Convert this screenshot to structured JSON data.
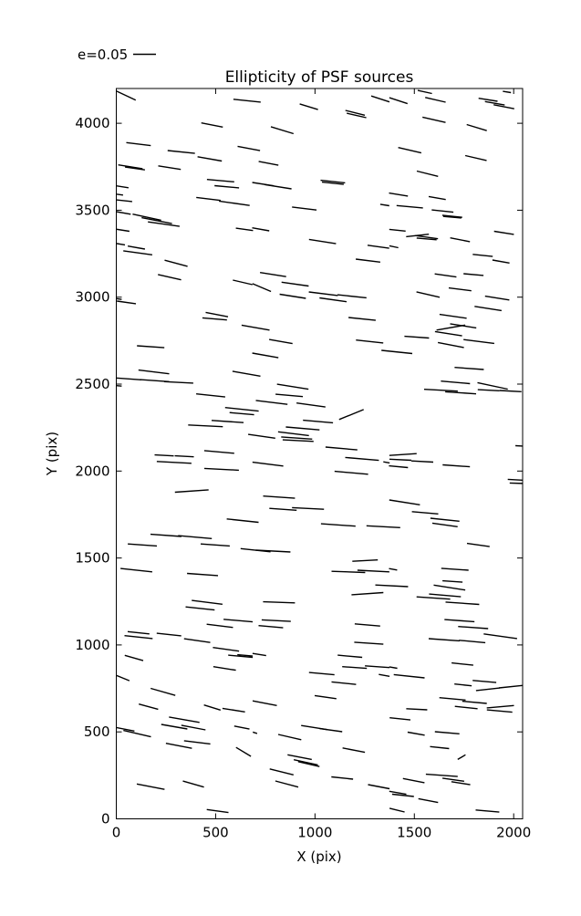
{
  "title": "Ellipticity of PSF sources",
  "legend": {
    "label": "e=0.05",
    "reference_e": 0.05
  },
  "axes": {
    "xlabel": "X (pix)",
    "ylabel": "Y (pix)",
    "xticks": [
      0,
      500,
      1000,
      1500,
      2000
    ],
    "yticks": [
      0,
      500,
      1000,
      1500,
      2000,
      2500,
      3000,
      3500,
      4000
    ],
    "xlim": [
      0,
      2045
    ],
    "ylim": [
      0,
      4200
    ],
    "grid": false,
    "tick_direction": "in",
    "spine_color": "#000000"
  },
  "chart_data": {
    "type": "scatter",
    "title": "Ellipticity of PSF sources",
    "xlabel": "X (pix)",
    "ylabel": "Y (pix)",
    "xlim": [
      0,
      2045
    ],
    "ylim": [
      0,
      4200
    ],
    "legend": "e=0.05 reference whisker; each point drawn as a line segment of length proportional to ellipticity e (0.05 = 25 px), tilted by its position angle",
    "segment_fields": [
      "x_pix",
      "y_pix",
      "angle_deg",
      "e"
    ],
    "segments": [
      [
        48,
        4160,
        -25,
        0.048
      ],
      [
        658,
        4130,
        -6,
        0.06
      ],
      [
        482,
        3990,
        -11,
        0.048
      ],
      [
        112,
        3880,
        -7,
        0.054
      ],
      [
        667,
        3855,
        -11,
        0.05
      ],
      [
        327,
        3835,
        -6,
        0.06
      ],
      [
        470,
        3795,
        -10,
        0.054
      ],
      [
        71,
        3750,
        -9,
        0.054
      ],
      [
        94,
        3740,
        -8,
        0.044
      ],
      [
        268,
        3745,
        -9,
        0.05
      ],
      [
        525,
        3670,
        -5,
        0.06
      ],
      [
        556,
        3635,
        -5,
        0.054
      ],
      [
        30,
        3635,
        -9,
        0.028
      ],
      [
        16,
        3590,
        -8,
        0.016
      ],
      [
        39,
        3555,
        -6,
        0.036
      ],
      [
        464,
        3565,
        -7,
        0.054
      ],
      [
        594,
        3540,
        -8,
        0.068
      ],
      [
        34,
        3485,
        -10,
        0.034
      ],
      [
        154,
        3460,
        -12,
        0.064
      ],
      [
        204,
        3440,
        -11,
        0.068
      ],
      [
        239,
        3420,
        -8,
        0.07
      ],
      [
        645,
        3390,
        -8,
        0.038
      ],
      [
        32,
        3385,
        -9,
        0.03
      ],
      [
        21,
        3305,
        -9,
        0.02
      ],
      [
        101,
        3285,
        -10,
        0.038
      ],
      [
        108,
        3255,
        -8,
        0.064
      ],
      [
        301,
        3195,
        -15,
        0.052
      ],
      [
        969,
        4095,
        -17,
        0.042
      ],
      [
        1329,
        4140,
        -18,
        0.042
      ],
      [
        1202,
        4060,
        -14,
        0.044
      ],
      [
        1209,
        4045,
        -13,
        0.044
      ],
      [
        835,
        3960,
        -17,
        0.052
      ],
      [
        766,
        3770,
        -11,
        0.044
      ],
      [
        739,
        3650,
        -9,
        0.048
      ],
      [
        814,
        3635,
        -9,
        0.06
      ],
      [
        1090,
        3665,
        -6,
        0.054
      ],
      [
        1090,
        3655,
        -6,
        0.048
      ],
      [
        946,
        3510,
        -7,
        0.054
      ],
      [
        1351,
        3530,
        -9,
        0.02
      ],
      [
        727,
        3390,
        -10,
        0.038
      ],
      [
        1038,
        3320,
        -9,
        0.06
      ],
      [
        1319,
        3290,
        -8,
        0.048
      ],
      [
        1267,
        3210,
        -7,
        0.054
      ],
      [
        1420,
        4130,
        -18,
        0.042
      ],
      [
        1553,
        4180,
        -12,
        0.032
      ],
      [
        1606,
        4135,
        -13,
        0.046
      ],
      [
        1871,
        4135,
        -9,
        0.042
      ],
      [
        1905,
        4115,
        -10,
        0.044
      ],
      [
        1951,
        4095,
        -11,
        0.046
      ],
      [
        1966,
        4180,
        -9,
        0.018
      ],
      [
        1599,
        4020,
        -13,
        0.052
      ],
      [
        1814,
        3975,
        -17,
        0.046
      ],
      [
        1477,
        3845,
        -13,
        0.052
      ],
      [
        1810,
        3800,
        -13,
        0.048
      ],
      [
        1566,
        3710,
        -14,
        0.048
      ],
      [
        1420,
        3590,
        -9,
        0.042
      ],
      [
        1615,
        3570,
        -10,
        0.038
      ],
      [
        1477,
        3520,
        -5,
        0.058
      ],
      [
        1642,
        3495,
        -6,
        0.048
      ],
      [
        1691,
        3465,
        -6,
        0.044
      ],
      [
        1691,
        3460,
        -5,
        0.04
      ],
      [
        1415,
        3385,
        -6,
        0.036
      ],
      [
        1516,
        3355,
        6,
        0.05
      ],
      [
        1562,
        3345,
        -8,
        0.05
      ],
      [
        1562,
        3335,
        -5,
        0.044
      ],
      [
        1951,
        3370,
        -9,
        0.044
      ],
      [
        1730,
        3330,
        -11,
        0.044
      ],
      [
        1397,
        3290,
        -12,
        0.02
      ],
      [
        1844,
        3240,
        -6,
        0.044
      ],
      [
        1936,
        3205,
        -10,
        0.038
      ],
      [
        268,
        3115,
        -13,
        0.052
      ],
      [
        636,
        3085,
        -13,
        0.044
      ],
      [
        11,
        2990,
        -9,
        0.014
      ],
      [
        51,
        2970,
        -8,
        0.042
      ],
      [
        506,
        2900,
        -11,
        0.05
      ],
      [
        495,
        2875,
        -5,
        0.054
      ],
      [
        701,
        2825,
        -10,
        0.062
      ],
      [
        173,
        2715,
        -4,
        0.06
      ],
      [
        189,
        2570,
        -7,
        0.068
      ],
      [
        655,
        2560,
        -10,
        0.062
      ],
      [
        62,
        2530,
        -4,
        0.056
      ],
      [
        193,
        2520,
        -4,
        0.064
      ],
      [
        314,
        2510,
        -3,
        0.064
      ],
      [
        11,
        2490,
        -5,
        0.014
      ],
      [
        475,
        2435,
        -6,
        0.064
      ],
      [
        632,
        2355,
        -6,
        0.074
      ],
      [
        632,
        2330,
        -5,
        0.054
      ],
      [
        560,
        2285,
        -4,
        0.07
      ],
      [
        449,
        2260,
        -3,
        0.076
      ],
      [
        518,
        2110,
        -5,
        0.066
      ],
      [
        789,
        3130,
        -9,
        0.058
      ],
      [
        900,
        3075,
        -8,
        0.06
      ],
      [
        732,
        3055,
        -23,
        0.044
      ],
      [
        888,
        3005,
        -9,
        0.058
      ],
      [
        1042,
        3020,
        -7,
        0.064
      ],
      [
        1091,
        2985,
        -8,
        0.06
      ],
      [
        1186,
        3005,
        -6,
        0.064
      ],
      [
        1237,
        2875,
        -6,
        0.06
      ],
      [
        828,
        2745,
        -10,
        0.052
      ],
      [
        1275,
        2745,
        -6,
        0.06
      ],
      [
        750,
        2665,
        -10,
        0.058
      ],
      [
        1412,
        2685,
        -6,
        0.068
      ],
      [
        888,
        2485,
        -9,
        0.07
      ],
      [
        870,
        2435,
        -5,
        0.06
      ],
      [
        782,
        2395,
        -7,
        0.07
      ],
      [
        980,
        2380,
        -8,
        0.064
      ],
      [
        1183,
        2325,
        22,
        0.058
      ],
      [
        1015,
        2285,
        -5,
        0.066
      ],
      [
        938,
        2245,
        -5,
        0.074
      ],
      [
        892,
        2215,
        -7,
        0.068
      ],
      [
        908,
        2190,
        -4,
        0.068
      ],
      [
        732,
        2200,
        -8,
        0.06
      ],
      [
        915,
        2175,
        -3,
        0.068
      ],
      [
        1133,
        2130,
        -5,
        0.07
      ],
      [
        1657,
        3125,
        -8,
        0.048
      ],
      [
        1798,
        3130,
        -5,
        0.044
      ],
      [
        1730,
        3045,
        -7,
        0.05
      ],
      [
        1569,
        3015,
        -13,
        0.052
      ],
      [
        1917,
        2995,
        -9,
        0.054
      ],
      [
        1871,
        2935,
        -9,
        0.06
      ],
      [
        1695,
        2890,
        -8,
        0.06
      ],
      [
        1746,
        2835,
        -9,
        0.058
      ],
      [
        1684,
        2825,
        10,
        0.064
      ],
      [
        1672,
        2790,
        -9,
        0.06
      ],
      [
        1512,
        2770,
        -4,
        0.054
      ],
      [
        1825,
        2745,
        -7,
        0.068
      ],
      [
        1684,
        2725,
        -11,
        0.058
      ],
      [
        1776,
        2590,
        -4,
        0.064
      ],
      [
        1707,
        2510,
        -5,
        0.064
      ],
      [
        1894,
        2490,
        -12,
        0.068
      ],
      [
        1634,
        2465,
        -3,
        0.074
      ],
      [
        1733,
        2450,
        -4,
        0.068
      ],
      [
        1874,
        2465,
        -3,
        0.048
      ],
      [
        1984,
        2460,
        -3,
        0.048
      ],
      [
        2027,
        2145,
        -3,
        0.016
      ],
      [
        241,
        2090,
        -3,
        0.042
      ],
      [
        342,
        2085,
        -3,
        0.042
      ],
      [
        291,
        2050,
        -3,
        0.076
      ],
      [
        530,
        2010,
        -3,
        0.076
      ],
      [
        380,
        1885,
        4,
        0.074
      ],
      [
        636,
        1715,
        -6,
        0.07
      ],
      [
        250,
        1630,
        -4,
        0.068
      ],
      [
        396,
        1620,
        -5,
        0.074
      ],
      [
        131,
        1575,
        -4,
        0.064
      ],
      [
        498,
        1575,
        -4,
        0.064
      ],
      [
        701,
        1545,
        -6,
        0.066
      ],
      [
        101,
        1430,
        -6,
        0.07
      ],
      [
        434,
        1405,
        -4,
        0.068
      ],
      [
        457,
        1245,
        -7,
        0.068
      ],
      [
        422,
        1210,
        -6,
        0.064
      ],
      [
        613,
        1140,
        -5,
        0.064
      ],
      [
        521,
        1110,
        -7,
        0.058
      ],
      [
        112,
        1070,
        -6,
        0.048
      ],
      [
        265,
        1060,
        -6,
        0.054
      ],
      [
        763,
        2040,
        -7,
        0.068
      ],
      [
        1237,
        2070,
        -5,
        0.074
      ],
      [
        1360,
        2050,
        -10,
        0.014
      ],
      [
        1183,
        1990,
        -5,
        0.074
      ],
      [
        819,
        1850,
        -4,
        0.07
      ],
      [
        839,
        1780,
        -4,
        0.06
      ],
      [
        965,
        1785,
        -3,
        0.07
      ],
      [
        1117,
        1690,
        -4,
        0.076
      ],
      [
        1344,
        1680,
        -3,
        0.074
      ],
      [
        789,
        1540,
        -3,
        0.076
      ],
      [
        1252,
        1485,
        3,
        0.056
      ],
      [
        1168,
        1420,
        -2,
        0.074
      ],
      [
        1294,
        1425,
        -3,
        0.07
      ],
      [
        1386,
        1340,
        -3,
        0.072
      ],
      [
        1264,
        1295,
        4,
        0.07
      ],
      [
        819,
        1245,
        -2,
        0.07
      ],
      [
        805,
        1140,
        -3,
        0.064
      ],
      [
        778,
        1105,
        -5,
        0.054
      ],
      [
        1264,
        1115,
        -5,
        0.056
      ],
      [
        1443,
        2095,
        4,
        0.06
      ],
      [
        1430,
        2065,
        -3,
        0.048
      ],
      [
        1540,
        2055,
        -3,
        0.048
      ],
      [
        1420,
        2025,
        -5,
        0.042
      ],
      [
        1711,
        2030,
        -4,
        0.06
      ],
      [
        2009,
        1950,
        -3,
        0.034
      ],
      [
        2014,
        1930,
        -2,
        0.03
      ],
      [
        1451,
        1820,
        -9,
        0.068
      ],
      [
        1554,
        1760,
        -5,
        0.058
      ],
      [
        1654,
        1720,
        -6,
        0.064
      ],
      [
        1654,
        1690,
        -8,
        0.056
      ],
      [
        1822,
        1575,
        -8,
        0.05
      ],
      [
        1393,
        1435,
        -10,
        0.018
      ],
      [
        1704,
        1435,
        -4,
        0.06
      ],
      [
        1692,
        1365,
        -4,
        0.044
      ],
      [
        1677,
        1330,
        -9,
        0.07
      ],
      [
        1596,
        1270,
        -4,
        0.074
      ],
      [
        1654,
        1285,
        -5,
        0.07
      ],
      [
        1742,
        1240,
        -4,
        0.074
      ],
      [
        1727,
        1140,
        -4,
        0.066
      ],
      [
        1796,
        1100,
        -4,
        0.066
      ],
      [
        1933,
        1050,
        -8,
        0.074
      ],
      [
        112,
        1045,
        -6,
        0.062
      ],
      [
        407,
        1025,
        -8,
        0.058
      ],
      [
        552,
        975,
        -8,
        0.058
      ],
      [
        625,
        935,
        -5,
        0.054
      ],
      [
        720,
        945,
        -9,
        0.03
      ],
      [
        648,
        940,
        -5,
        0.034
      ],
      [
        89,
        925,
        -16,
        0.042
      ],
      [
        545,
        865,
        -9,
        0.05
      ],
      [
        32,
        810,
        -22,
        0.032
      ],
      [
        235,
        730,
        -16,
        0.056
      ],
      [
        162,
        645,
        -15,
        0.044
      ],
      [
        483,
        640,
        -17,
        0.038
      ],
      [
        591,
        625,
        -9,
        0.05
      ],
      [
        342,
        570,
        -10,
        0.068
      ],
      [
        292,
        530,
        -10,
        0.058
      ],
      [
        388,
        525,
        -11,
        0.054
      ],
      [
        44,
        515,
        -11,
        0.042
      ],
      [
        105,
        490,
        -13,
        0.062
      ],
      [
        632,
        525,
        -11,
        0.034
      ],
      [
        698,
        495,
        -18,
        0.01
      ],
      [
        407,
        440,
        -7,
        0.058
      ],
      [
        315,
        420,
        -11,
        0.058
      ],
      [
        640,
        385,
        -31,
        0.038
      ],
      [
        173,
        185,
        -11,
        0.062
      ],
      [
        388,
        200,
        -16,
        0.048
      ],
      [
        510,
        45,
        -8,
        0.048
      ],
      [
        1271,
        1010,
        -4,
        0.064
      ],
      [
        1176,
        935,
        -5,
        0.054
      ],
      [
        1034,
        835,
        -5,
        0.056
      ],
      [
        1199,
        870,
        -4,
        0.054
      ],
      [
        1313,
        875,
        -4,
        0.054
      ],
      [
        1348,
        825,
        -10,
        0.024
      ],
      [
        1394,
        870,
        -10,
        0.018
      ],
      [
        1474,
        820,
        -6,
        0.068
      ],
      [
        1145,
        780,
        -6,
        0.054
      ],
      [
        1053,
        700,
        -8,
        0.048
      ],
      [
        747,
        665,
        -11,
        0.054
      ],
      [
        996,
        525,
        -9,
        0.058
      ],
      [
        1080,
        510,
        -8,
        0.05
      ],
      [
        873,
        470,
        -13,
        0.052
      ],
      [
        1195,
        395,
        -11,
        0.05
      ],
      [
        923,
        355,
        -11,
        0.054
      ],
      [
        954,
        325,
        -12,
        0.054
      ],
      [
        969,
        315,
        -13,
        0.048
      ],
      [
        832,
        270,
        -14,
        0.054
      ],
      [
        858,
        200,
        -15,
        0.052
      ],
      [
        1137,
        235,
        -6,
        0.048
      ],
      [
        1321,
        185,
        -11,
        0.048
      ],
      [
        1650,
        1030,
        -4,
        0.068
      ],
      [
        1791,
        1020,
        -5,
        0.058
      ],
      [
        1742,
        890,
        -6,
        0.048
      ],
      [
        1853,
        790,
        -5,
        0.052
      ],
      [
        1745,
        770,
        -6,
        0.038
      ],
      [
        1870,
        745,
        6,
        0.052
      ],
      [
        1985,
        760,
        6,
        0.052
      ],
      [
        1692,
        690,
        -5,
        0.058
      ],
      [
        1803,
        670,
        -5,
        0.054
      ],
      [
        1761,
        640,
        -6,
        0.05
      ],
      [
        1933,
        645,
        5,
        0.06
      ],
      [
        1929,
        620,
        -5,
        0.056
      ],
      [
        1512,
        630,
        -3,
        0.046
      ],
      [
        1428,
        575,
        -6,
        0.046
      ],
      [
        1509,
        490,
        -10,
        0.038
      ],
      [
        1665,
        495,
        -5,
        0.054
      ],
      [
        1627,
        410,
        -6,
        0.042
      ],
      [
        1738,
        355,
        31,
        0.02
      ],
      [
        1638,
        250,
        -4,
        0.07
      ],
      [
        1497,
        220,
        -11,
        0.048
      ],
      [
        1696,
        225,
        -8,
        0.048
      ],
      [
        1734,
        205,
        -9,
        0.042
      ],
      [
        1417,
        150,
        -10,
        0.038
      ],
      [
        1443,
        135,
        -6,
        0.048
      ],
      [
        1570,
        105,
        -11,
        0.044
      ],
      [
        1413,
        50,
        -14,
        0.034
      ],
      [
        1868,
        45,
        -5,
        0.052
      ]
    ]
  }
}
